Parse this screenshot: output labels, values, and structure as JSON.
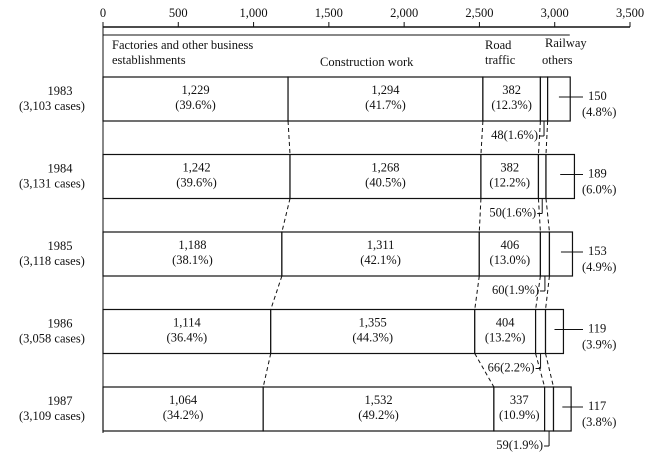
{
  "chart_data": {
    "type": "stacked-bar",
    "categories": [
      "1983",
      "1984",
      "1985",
      "1986",
      "1987"
    ],
    "category_sublabels": [
      "(3,103 cases)",
      "(3,131 cases)",
      "(3,118 cases)",
      "(3,058 cases)",
      "(3,109 cases)"
    ],
    "series": [
      {
        "name": "Factories and other business establishments",
        "color": "#ffffff",
        "values": [
          1229,
          1242,
          1188,
          1114,
          1064
        ],
        "value_labels": [
          "1,229",
          "1,242",
          "1,188",
          "1,114",
          "1,064"
        ],
        "shares": [
          39.6,
          39.6,
          38.1,
          36.4,
          34.2
        ],
        "share_labels": [
          "(39.6%)",
          "(39.6%)",
          "(38.1%)",
          "(36.4%)",
          "(34.2%)"
        ]
      },
      {
        "name": "Construction work",
        "color": "#ffffff",
        "values": [
          1294,
          1268,
          1311,
          1355,
          1532
        ],
        "value_labels": [
          "1,294",
          "1,268",
          "1,311",
          "1,355",
          "1,532"
        ],
        "shares": [
          41.7,
          40.5,
          42.1,
          44.3,
          49.2
        ],
        "share_labels": [
          "(41.7%)",
          "(40.5%)",
          "(42.1%)",
          "(44.3%)",
          "(49.2%)"
        ]
      },
      {
        "name": "Road traffic",
        "color": "#ffffff",
        "values": [
          382,
          382,
          406,
          404,
          337
        ],
        "shares": [
          12.3,
          12.2,
          13.0,
          13.2,
          10.9
        ],
        "share_labels": [
          "(12.3%)",
          "(12.2%)",
          "(13.0%)",
          "(13.2%)",
          "(10.9%)"
        ]
      },
      {
        "name": "Railway",
        "color": "#ffffff",
        "values": [
          48,
          50,
          60,
          66,
          59
        ],
        "shares": [
          1.6,
          1.6,
          1.9,
          2.2,
          1.9
        ],
        "share_labels": [
          "(1.6%)",
          "(1.6%)",
          "(1.9%)",
          "(2.2%)",
          "(1.9%)"
        ]
      },
      {
        "name": "others",
        "color": "#ffffff",
        "values": [
          150,
          189,
          153,
          119,
          117
        ],
        "shares": [
          4.8,
          6.0,
          4.9,
          3.9,
          3.8
        ],
        "share_labels": [
          "(4.8%)",
          "(6.0%)",
          "(4.9%)",
          "(3.9%)",
          "(3.8%)"
        ]
      }
    ],
    "xlim": [
      0,
      3500
    ],
    "xticks": [
      0,
      500,
      {
        "value": 1000,
        "label": "1,000"
      },
      {
        "value": 1500,
        "label": "1,500"
      },
      {
        "value": 2000,
        "label": "2,000"
      },
      {
        "value": 2500,
        "label": "2,500"
      },
      {
        "value": 3000,
        "label": "3,000"
      },
      {
        "value": 3500,
        "label": "3,500"
      }
    ]
  }
}
